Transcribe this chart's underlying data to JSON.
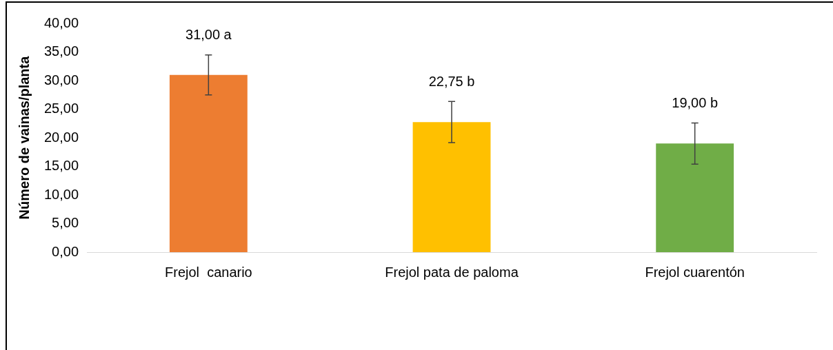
{
  "chart_data": {
    "type": "bar",
    "ylabel": "Número de vainas/planta",
    "categories": [
      "Frejol  canario",
      "Frejol pata de paloma",
      "Frejol cuarentón"
    ],
    "values": [
      31.0,
      22.75,
      19.0
    ],
    "colors": [
      "#ed7d31",
      "#ffc000",
      "#70ad47"
    ],
    "errors": [
      3.5,
      3.6,
      3.6
    ],
    "value_labels": [
      "31,00 a",
      "22,75 b",
      "19,00 b"
    ],
    "ylim": [
      0,
      40
    ],
    "yticks": [
      {
        "value": 0,
        "label": "0,00"
      },
      {
        "value": 5,
        "label": "5,00"
      },
      {
        "value": 10,
        "label": "10,00"
      },
      {
        "value": 15,
        "label": "15,00"
      },
      {
        "value": 20,
        "label": "20,00"
      },
      {
        "value": 25,
        "label": "25,00"
      },
      {
        "value": 30,
        "label": "30,00"
      },
      {
        "value": 35,
        "label": "35,00"
      },
      {
        "value": 40,
        "label": "40,00"
      }
    ],
    "grid": false,
    "legend": false
  }
}
